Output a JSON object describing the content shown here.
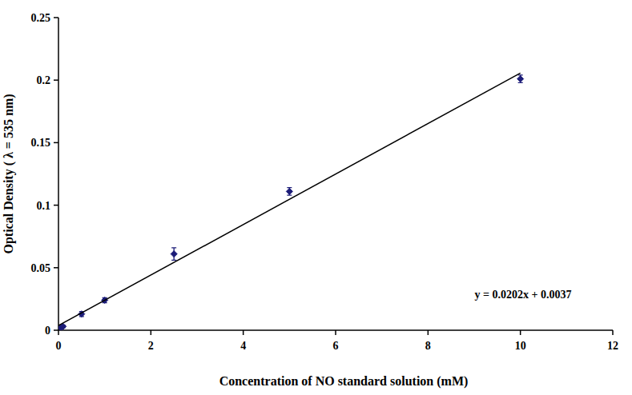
{
  "chart_data": {
    "type": "scatter",
    "x_label": "Concentration of NO standard solution (mM)",
    "y_label": "Optical Density ( λ = 535 nm)",
    "annotation": "y = 0.0202x + 0.0037",
    "xlim": [
      0,
      12
    ],
    "ylim": [
      0,
      0.25
    ],
    "xticks": [
      0,
      2,
      4,
      6,
      8,
      10,
      12
    ],
    "yticks": [
      0,
      0.05,
      0.1,
      0.15,
      0.2,
      0.25
    ],
    "grid": false,
    "series": [
      {
        "type": "scatter",
        "color": "#1c1c78",
        "marker": "diamond",
        "x": [
          0.05,
          0.1,
          0.5,
          1,
          2.5,
          5,
          10
        ],
        "values": [
          0.002,
          0.003,
          0.013,
          0.024,
          0.061,
          0.111,
          0.201
        ],
        "errors": [
          0.001,
          0.001,
          0.002,
          0.002,
          0.005,
          0.003,
          0.003
        ]
      },
      {
        "type": "line",
        "color": "#000000",
        "line_style": "solid",
        "x": [
          0,
          10
        ],
        "values": [
          0.0037,
          0.2057
        ]
      }
    ]
  }
}
